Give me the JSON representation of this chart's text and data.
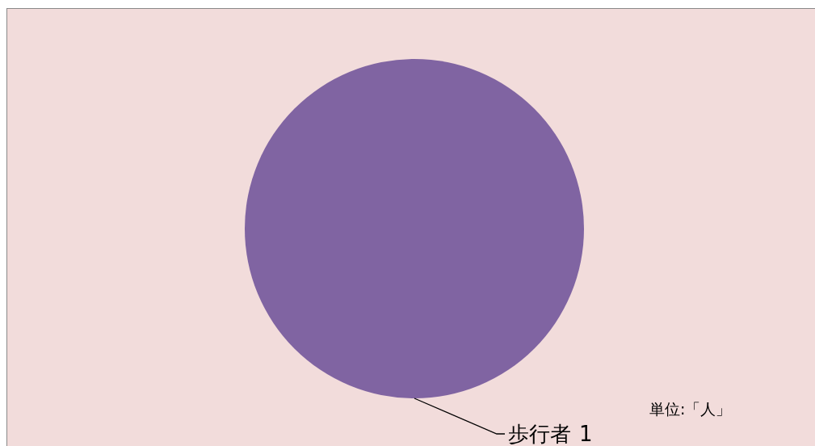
{
  "chart_data": {
    "type": "pie",
    "categories": [
      "歩行者"
    ],
    "values": [
      1
    ],
    "colors": [
      "#8064a2"
    ],
    "data_labels": true,
    "annotations": [
      "単位:「人」"
    ]
  }
}
